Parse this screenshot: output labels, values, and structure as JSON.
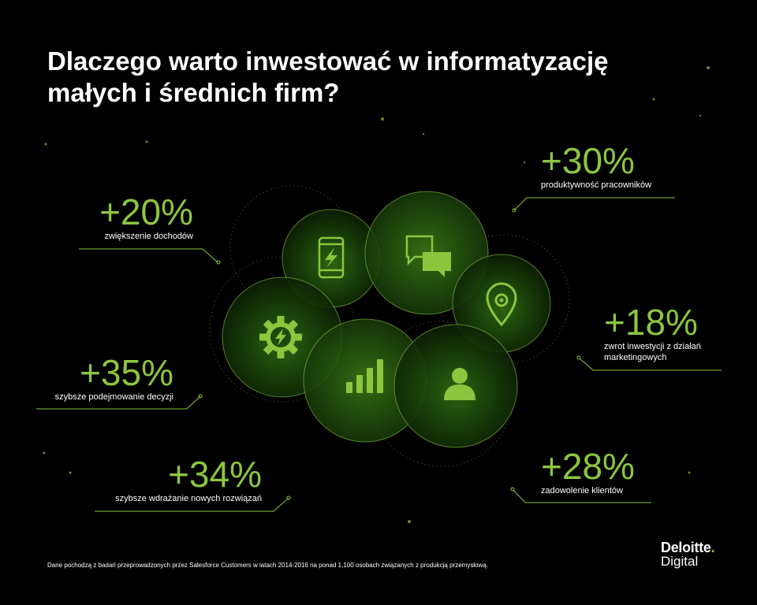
{
  "title": {
    "line1": "Dlaczego warto inwestować w informatyzację",
    "line2": "małych i średnich firm?"
  },
  "stats": [
    {
      "id": "revenue",
      "value": "+20%",
      "label": "zwiększenie dochodów"
    },
    {
      "id": "productivity",
      "value": "+30%",
      "label": "produktywność pracowników"
    },
    {
      "id": "roi",
      "value": "+18%",
      "label_line1": "zwrot inwestycji z działań",
      "label_line2": "marketingowych"
    },
    {
      "id": "decisions",
      "value": "+35%",
      "label": "szybsze podejmowanie decyzji"
    },
    {
      "id": "satisfaction",
      "value": "+28%",
      "label": "zadowolenie klientów"
    },
    {
      "id": "deployment",
      "value": "+34%",
      "label": "szybsze wdrażanie nowych rozwiązań"
    }
  ],
  "icons": [
    "smartphone-bolt-icon",
    "speech-bubbles-icon",
    "location-pin-icon",
    "gear-bolt-icon",
    "bar-chart-icon",
    "users-icon"
  ],
  "footnote": "Dane pochodzą z badań przeprowadzonych przez Salesforce Customers w latach 2014-2016 na ponad 1,100 osobach związanych z produkcją przemysłową.",
  "logo": {
    "brand": "Deloitte",
    "dot": ".",
    "sub": "Digital"
  },
  "colors": {
    "accent": "#8cc63f",
    "background": "#000000",
    "text": "#ffffff"
  }
}
